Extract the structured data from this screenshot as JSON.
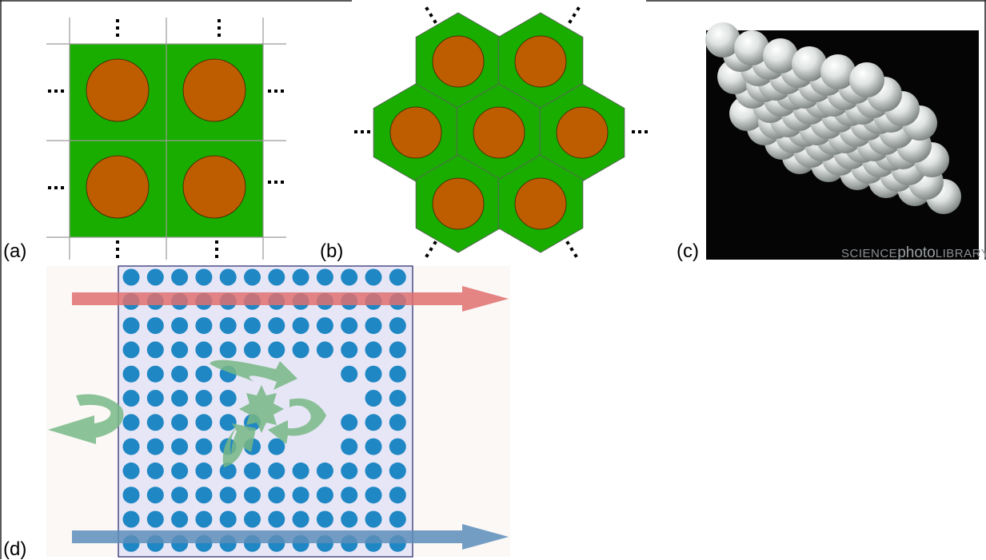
{
  "labels": {
    "a": "(a)",
    "b": "(b)",
    "c": "(c)",
    "d": "(d)"
  },
  "watermark": {
    "pre": "SCIENCE",
    "mid": "photo",
    "post": "LIBRARY"
  },
  "ellipsis": "...",
  "colors": {
    "cell_green": "#19ad00",
    "disk_orange": "#bd5d00",
    "grid_line": "#9a9a9a",
    "photo_bg": "#050505",
    "sphere": "#e6e8e7",
    "dot_blue": "#1f87c4",
    "square_fill": "#e6e6f6",
    "arrow_red": "#e07070",
    "arrow_blue": "#5d8ebb",
    "arrow_green": "#78b886",
    "outer_bg": "#fbf8f6"
  }
}
